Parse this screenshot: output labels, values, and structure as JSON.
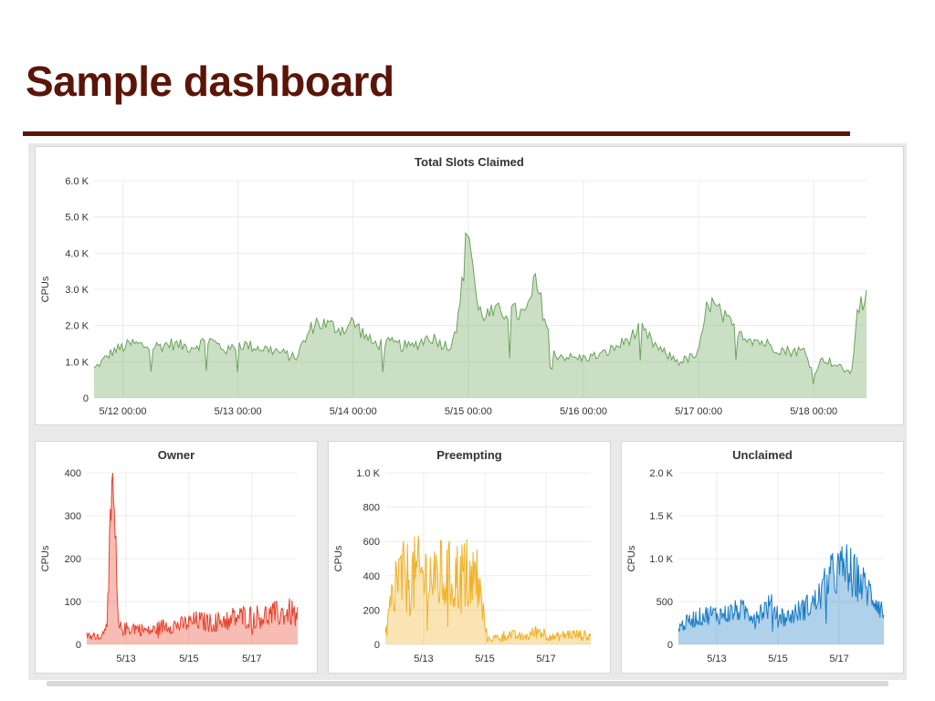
{
  "page": {
    "title": "Sample dashboard"
  },
  "colors": {
    "title": "#5b1508",
    "total": "#6aa35a",
    "owner": "#e8412c",
    "preempting": "#f0b128",
    "unclaimed": "#1a7cc4"
  },
  "chart_data": [
    {
      "id": "total",
      "type": "area",
      "title": "Total Slots Claimed",
      "ylabel": "CPUs",
      "x_range": [
        "2015-05-11 18:00",
        "2015-05-18 11:00"
      ],
      "ylim": [
        0,
        6000
      ],
      "yticks": [
        "0",
        "1.0 K",
        "2.0 K",
        "3.0 K",
        "4.0 K",
        "5.0 K",
        "6.0 K"
      ],
      "xticks": [
        "5/12 00:00",
        "5/13 00:00",
        "5/14 00:00",
        "5/15 00:00",
        "5/16 00:00",
        "5/17 00:00",
        "5/18 00:00"
      ],
      "color": "#6aa35a",
      "series": [
        {
          "x": [
            "2015-05-11 18:00",
            "2015-05-11 22:00",
            "2015-05-12 02:00",
            "2015-05-12 06:00",
            "2015-05-12 10:00",
            "2015-05-12 14:00",
            "2015-05-12 18:00",
            "2015-05-12 22:00",
            "2015-05-13 00:00",
            "2015-05-13 04:00",
            "2015-05-13 08:00",
            "2015-05-13 12:00",
            "2015-05-13 16:00",
            "2015-05-13 22:00",
            "2015-05-14 00:00",
            "2015-05-14 04:00",
            "2015-05-14 08:00",
            "2015-05-14 12:00",
            "2015-05-14 16:00",
            "2015-05-14 20:00",
            "2015-05-14 22:00",
            "2015-05-15 00:00",
            "2015-05-15 02:00",
            "2015-05-15 04:00",
            "2015-05-15 08:00",
            "2015-05-15 12:00",
            "2015-05-15 14:00",
            "2015-05-15 18:00",
            "2015-05-15 22:00",
            "2015-05-16 00:00",
            "2015-05-16 04:00",
            "2015-05-16 08:00",
            "2015-05-16 12:00",
            "2015-05-16 16:00",
            "2015-05-16 20:00",
            "2015-05-17 00:00",
            "2015-05-17 02:00",
            "2015-05-17 06:00",
            "2015-05-17 10:00",
            "2015-05-17 14:00",
            "2015-05-17 18:00",
            "2015-05-17 22:00",
            "2015-05-18 00:00",
            "2015-05-18 02:00",
            "2015-05-18 06:00",
            "2015-05-18 08:00",
            "2015-05-18 09:00",
            "2015-05-18 11:00"
          ],
          "values": [
            800,
            1300,
            1500,
            1400,
            1500,
            1400,
            1600,
            1300,
            1500,
            1400,
            1300,
            1100,
            2100,
            1900,
            2100,
            1500,
            1500,
            1400,
            1700,
            1400,
            2200,
            4900,
            2400,
            2300,
            2400,
            2300,
            3200,
            1200,
            1100,
            1100,
            1200,
            1500,
            1900,
            1300,
            1000,
            1200,
            2700,
            2100,
            1700,
            1500,
            1300,
            1300,
            700,
            1100,
            800,
            700,
            2500,
            2700
          ]
        }
      ]
    },
    {
      "id": "owner",
      "type": "area",
      "title": "Owner",
      "ylabel": "CPUs",
      "x_range": [
        "2015-05-11 18:00",
        "2015-05-18 11:00"
      ],
      "ylim": [
        0,
        400
      ],
      "yticks": [
        "0",
        "100",
        "200",
        "300",
        "400"
      ],
      "xticks": [
        "5/13",
        "5/15",
        "5/17"
      ],
      "color": "#e8412c",
      "series": [
        {
          "x": [
            "2015-05-11 18:00",
            "2015-05-12 06:00",
            "2015-05-12 10:00",
            "2015-05-12 14:00",
            "2015-05-12 18:00",
            "2015-05-12 22:00",
            "2015-05-13 06:00",
            "2015-05-13 18:00",
            "2015-05-14 06:00",
            "2015-05-14 18:00",
            "2015-05-15 06:00",
            "2015-05-15 18:00",
            "2015-05-16 06:00",
            "2015-05-16 18:00",
            "2015-05-17 06:00",
            "2015-05-17 18:00",
            "2015-05-18 06:00",
            "2015-05-18 11:00"
          ],
          "values": [
            20,
            20,
            80,
            370,
            40,
            35,
            40,
            30,
            45,
            45,
            55,
            50,
            60,
            65,
            65,
            70,
            75,
            60
          ]
        }
      ]
    },
    {
      "id": "preempting",
      "type": "area",
      "title": "Preempting",
      "ylabel": "CPUs",
      "x_range": [
        "2015-05-11 18:00",
        "2015-05-18 11:00"
      ],
      "ylim": [
        0,
        1000
      ],
      "yticks": [
        "0",
        "200",
        "400",
        "600",
        "800",
        "1.0 K"
      ],
      "xticks": [
        "5/13",
        "5/15",
        "5/17"
      ],
      "color": "#f0b128",
      "series": [
        {
          "x": [
            "2015-05-11 18:00",
            "2015-05-12 02:00",
            "2015-05-12 10:00",
            "2015-05-12 18:00",
            "2015-05-13 02:00",
            "2015-05-13 10:00",
            "2015-05-13 18:00",
            "2015-05-14 02:00",
            "2015-05-14 10:00",
            "2015-05-14 18:00",
            "2015-05-15 02:00",
            "2015-05-15 10:00",
            "2015-05-15 18:00",
            "2015-05-16 06:00",
            "2015-05-16 18:00",
            "2015-05-17 06:00",
            "2015-05-17 18:00",
            "2015-05-18 11:00"
          ],
          "values": [
            50,
            370,
            380,
            400,
            390,
            400,
            380,
            390,
            400,
            380,
            30,
            40,
            60,
            40,
            80,
            40,
            60,
            50
          ]
        }
      ]
    },
    {
      "id": "unclaimed",
      "type": "area",
      "title": "Unclaimed",
      "ylabel": "CPUs",
      "x_range": [
        "2015-05-11 18:00",
        "2015-05-18 11:00"
      ],
      "ylim": [
        0,
        2000
      ],
      "yticks": [
        "0",
        "500",
        "1.0 K",
        "1.5 K",
        "2.0 K"
      ],
      "xticks": [
        "5/13",
        "5/15",
        "5/17"
      ],
      "color": "#1a7cc4",
      "series": [
        {
          "x": [
            "2015-05-11 18:00",
            "2015-05-12 06:00",
            "2015-05-12 18:00",
            "2015-05-13 06:00",
            "2015-05-13 18:00",
            "2015-05-14 06:00",
            "2015-05-14 18:00",
            "2015-05-15 06:00",
            "2015-05-15 18:00",
            "2015-05-16 06:00",
            "2015-05-16 18:00",
            "2015-05-17 06:00",
            "2015-05-17 18:00",
            "2015-05-18 06:00",
            "2015-05-18 11:00"
          ],
          "values": [
            200,
            300,
            350,
            350,
            400,
            350,
            450,
            300,
            400,
            500,
            800,
            900,
            700,
            500,
            350
          ]
        }
      ]
    }
  ]
}
